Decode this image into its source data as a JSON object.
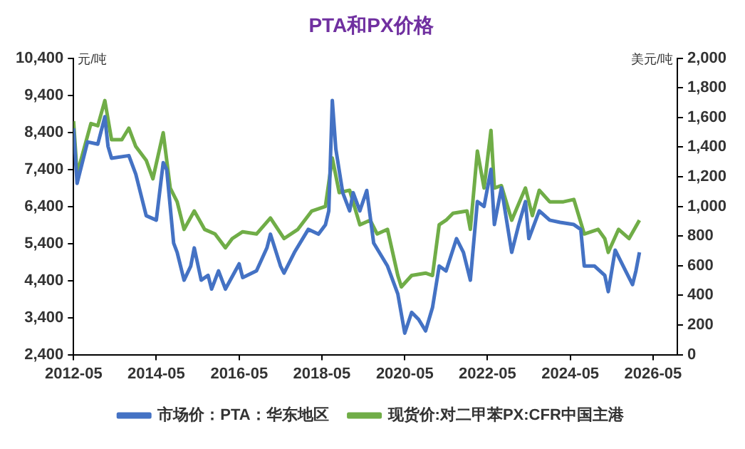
{
  "chart_data": {
    "type": "line",
    "title": "PTA和PX价格",
    "ylabel": "元/吨",
    "y2label": "美元/吨",
    "xlim": [
      "2012-05",
      "2026-12"
    ],
    "xticks": [
      "2012-05",
      "2014-05",
      "2016-05",
      "2018-05",
      "2020-05",
      "2022-05",
      "2024-05",
      "2026-05"
    ],
    "ylim": [
      2400,
      10400
    ],
    "yticks": [
      {
        "value": 2400,
        "label": "2,400"
      },
      {
        "value": 3400,
        "label": "3,400"
      },
      {
        "value": 4400,
        "label": "4,400"
      },
      {
        "value": 5400,
        "label": "5,400"
      },
      {
        "value": 6400,
        "label": "6,400"
      },
      {
        "value": 7400,
        "label": "7,400"
      },
      {
        "value": 8400,
        "label": "8,400"
      },
      {
        "value": 9400,
        "label": "9,400"
      },
      {
        "value": 10400,
        "label": "10,400"
      }
    ],
    "y2lim": [
      0,
      2000
    ],
    "y2ticks": [
      0,
      200,
      400,
      600,
      800,
      {
        "value": 1000,
        "label": "1,000"
      },
      {
        "value": 1200,
        "label": "1,200"
      },
      {
        "value": 1400,
        "label": "1,400"
      },
      {
        "value": 1600,
        "label": "1,600"
      },
      {
        "value": 1800,
        "label": "1,800"
      },
      {
        "value": 2000,
        "label": "2,000"
      }
    ],
    "grid": false,
    "legend": "bottom",
    "marker": "none",
    "line_style": "solid",
    "series": [
      {
        "name": "市场价：PTA：华东地区",
        "color": "#4472c4",
        "axis": "y",
        "x": [
          "2012-05",
          "2012-06",
          "2012-09",
          "2012-12",
          "2013-02",
          "2013-03",
          "2013-04",
          "2013-09",
          "2013-11",
          "2014-02",
          "2014-05",
          "2014-07",
          "2014-08",
          "2014-10",
          "2014-11",
          "2015-01",
          "2015-03",
          "2015-04",
          "2015-06",
          "2015-08",
          "2015-09",
          "2015-11",
          "2016-01",
          "2016-05",
          "2016-06",
          "2016-10",
          "2017-01",
          "2017-02",
          "2017-05",
          "2017-06",
          "2017-09",
          "2018-01",
          "2018-04",
          "2018-06",
          "2018-07",
          "2018-08",
          "2018-09",
          "2018-11",
          "2019-01",
          "2019-02",
          "2019-04",
          "2019-06",
          "2019-08",
          "2019-12",
          "2020-03",
          "2020-05",
          "2020-07",
          "2020-09",
          "2020-11",
          "2021-01",
          "2021-03",
          "2021-05",
          "2021-08",
          "2021-10",
          "2021-12",
          "2022-02",
          "2022-04",
          "2022-06",
          "2022-07",
          "2022-09",
          "2022-12",
          "2023-02",
          "2023-04",
          "2023-05",
          "2023-08",
          "2023-11",
          "2024-02",
          "2024-06",
          "2024-08",
          "2024-09",
          "2024-12",
          "2025-03",
          "2025-04",
          "2025-06",
          "2025-09",
          "2025-11",
          "2025-12",
          "2026-01"
        ],
        "values": [
          8510,
          7020,
          8140,
          8080,
          8820,
          8020,
          7700,
          7770,
          7270,
          6150,
          6030,
          7580,
          7390,
          5410,
          5160,
          4410,
          4790,
          5280,
          4410,
          4540,
          4170,
          4660,
          4170,
          4850,
          4480,
          4660,
          5280,
          5650,
          4790,
          4600,
          5160,
          5780,
          5650,
          5900,
          6280,
          9260,
          7950,
          6770,
          6280,
          6770,
          6280,
          6830,
          5410,
          4790,
          4040,
          2980,
          3540,
          3350,
          3040,
          3670,
          4790,
          4660,
          5530,
          5160,
          4410,
          6530,
          6400,
          7400,
          5910,
          6900,
          5160,
          5910,
          6530,
          5530,
          6280,
          6030,
          5970,
          5910,
          5780,
          4790,
          4790,
          4540,
          4100,
          5220,
          4660,
          4290,
          4660,
          5160
        ]
      },
      {
        "name": "现货价:对二甲苯PX:CFR中国主港",
        "color": "#70ad47",
        "axis": "y2",
        "x": [
          "2012-05",
          "2012-06",
          "2012-10",
          "2012-12",
          "2013-02",
          "2013-04",
          "2013-07",
          "2013-09",
          "2013-11",
          "2014-02",
          "2014-04",
          "2014-07",
          "2014-09",
          "2014-11",
          "2015-01",
          "2015-04",
          "2015-07",
          "2015-10",
          "2016-01",
          "2016-03",
          "2016-06",
          "2016-10",
          "2017-02",
          "2017-06",
          "2017-10",
          "2018-02",
          "2018-06",
          "2018-08",
          "2018-10",
          "2019-01",
          "2019-04",
          "2019-07",
          "2019-09",
          "2019-12",
          "2020-03",
          "2020-04",
          "2020-07",
          "2020-11",
          "2021-01",
          "2021-03",
          "2021-05",
          "2021-07",
          "2021-11",
          "2021-12",
          "2022-02",
          "2022-04",
          "2022-06",
          "2022-07",
          "2022-09",
          "2022-12",
          "2023-04",
          "2023-06",
          "2023-08",
          "2023-11",
          "2024-03",
          "2024-06",
          "2024-09",
          "2025-01",
          "2025-03",
          "2025-04",
          "2025-07",
          "2025-10",
          "2026-01"
        ],
        "values": [
          1575,
          1218,
          1559,
          1544,
          1714,
          1450,
          1450,
          1528,
          1404,
          1311,
          1186,
          1497,
          1124,
          1031,
          845,
          969,
          845,
          814,
          721,
          783,
          829,
          814,
          922,
          783,
          845,
          969,
          1000,
          1326,
          1093,
          1109,
          876,
          907,
          814,
          845,
          534,
          457,
          534,
          550,
          534,
          876,
          907,
          954,
          969,
          845,
          1373,
          1124,
          1513,
          1124,
          1140,
          907,
          1124,
          938,
          1109,
          1031,
          1031,
          1047,
          814,
          845,
          783,
          690,
          845,
          783,
          907
        ]
      }
    ]
  }
}
